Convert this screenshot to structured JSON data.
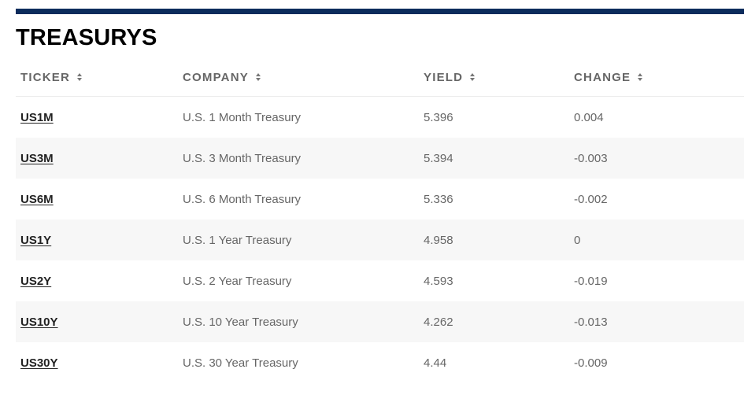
{
  "section": {
    "title": "TREASURYS"
  },
  "table": {
    "columns": [
      {
        "label": "TICKER"
      },
      {
        "label": "COMPANY"
      },
      {
        "label": "YIELD"
      },
      {
        "label": "CHANGE"
      }
    ],
    "rows": [
      {
        "ticker": "US1M",
        "company": "U.S. 1 Month Treasury",
        "yield": "5.396",
        "change": "0.004"
      },
      {
        "ticker": "US3M",
        "company": "U.S. 3 Month Treasury",
        "yield": "5.394",
        "change": "-0.003"
      },
      {
        "ticker": "US6M",
        "company": "U.S. 6 Month Treasury",
        "yield": "5.336",
        "change": "-0.002"
      },
      {
        "ticker": "US1Y",
        "company": "U.S. 1 Year Treasury",
        "yield": "4.958",
        "change": "0"
      },
      {
        "ticker": "US2Y",
        "company": "U.S. 2 Year Treasury",
        "yield": "4.593",
        "change": "-0.019"
      },
      {
        "ticker": "US10Y",
        "company": "U.S. 10 Year Treasury",
        "yield": "4.262",
        "change": "-0.013"
      },
      {
        "ticker": "US30Y",
        "company": "U.S. 30 Year Treasury",
        "yield": "4.44",
        "change": "-0.009"
      }
    ]
  },
  "colors": {
    "topbar": "#0c2c5c",
    "stripe": "#f7f7f7",
    "header_text": "#666666",
    "ticker_text": "#222222"
  }
}
